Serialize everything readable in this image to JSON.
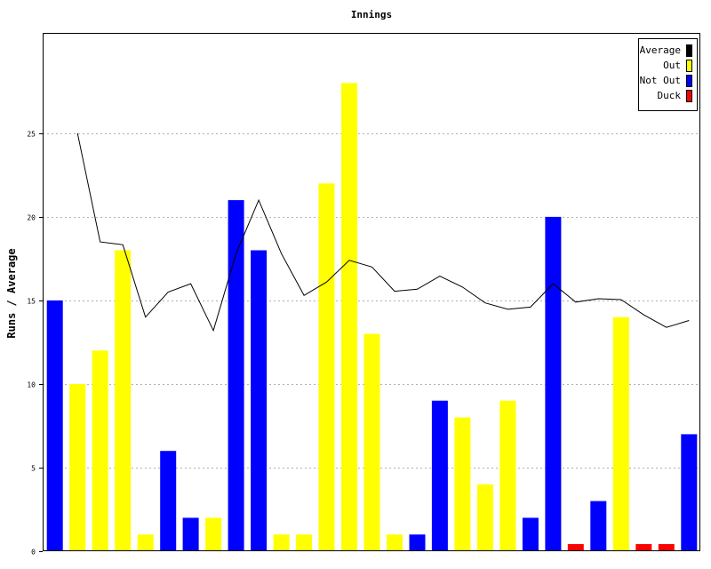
{
  "chart_data": {
    "type": "bar",
    "title": "Innings",
    "ylabel": "Runs / Average",
    "xlabel": "",
    "ylim": [
      0,
      31
    ],
    "yticks": [
      0,
      5,
      10,
      15,
      20,
      25
    ],
    "grid": true,
    "legend_position": "top-right",
    "legend": [
      {
        "label": "Average",
        "color": "#000000"
      },
      {
        "label": "Out",
        "color": "#ffff00"
      },
      {
        "label": "Not Out",
        "color": "#0000ff"
      },
      {
        "label": "Duck",
        "color": "#ff0000"
      }
    ],
    "innings": [
      {
        "runs": 15,
        "status": "Not Out"
      },
      {
        "runs": 10,
        "status": "Out"
      },
      {
        "runs": 12,
        "status": "Out"
      },
      {
        "runs": 18,
        "status": "Out"
      },
      {
        "runs": 1,
        "status": "Out"
      },
      {
        "runs": 6,
        "status": "Not Out"
      },
      {
        "runs": 2,
        "status": "Not Out"
      },
      {
        "runs": 2,
        "status": "Out"
      },
      {
        "runs": 21,
        "status": "Not Out"
      },
      {
        "runs": 18,
        "status": "Not Out"
      },
      {
        "runs": 1,
        "status": "Out"
      },
      {
        "runs": 1,
        "status": "Out"
      },
      {
        "runs": 22,
        "status": "Out"
      },
      {
        "runs": 28,
        "status": "Out"
      },
      {
        "runs": 13,
        "status": "Out"
      },
      {
        "runs": 1,
        "status": "Out"
      },
      {
        "runs": 1,
        "status": "Not Out"
      },
      {
        "runs": 9,
        "status": "Not Out"
      },
      {
        "runs": 8,
        "status": "Out"
      },
      {
        "runs": 4,
        "status": "Out"
      },
      {
        "runs": 9,
        "status": "Out"
      },
      {
        "runs": 2,
        "status": "Not Out"
      },
      {
        "runs": 20,
        "status": "Not Out"
      },
      {
        "runs": 0,
        "status": "Duck"
      },
      {
        "runs": 3,
        "status": "Not Out"
      },
      {
        "runs": 14,
        "status": "Out"
      },
      {
        "runs": 0,
        "status": "Duck"
      },
      {
        "runs": 0,
        "status": "Duck"
      },
      {
        "runs": 7,
        "status": "Not Out"
      }
    ],
    "average": [
      null,
      25,
      18.5,
      18.33,
      14,
      15.5,
      16,
      13.2,
      17.8,
      21,
      17.8,
      15.3,
      16.1,
      17.4,
      17,
      15.55,
      15.67,
      16.45,
      15.8,
      14.85,
      14.47,
      14.6,
      16,
      14.9,
      15.1,
      15.05,
      14.14,
      13.39,
      13.8
    ]
  }
}
